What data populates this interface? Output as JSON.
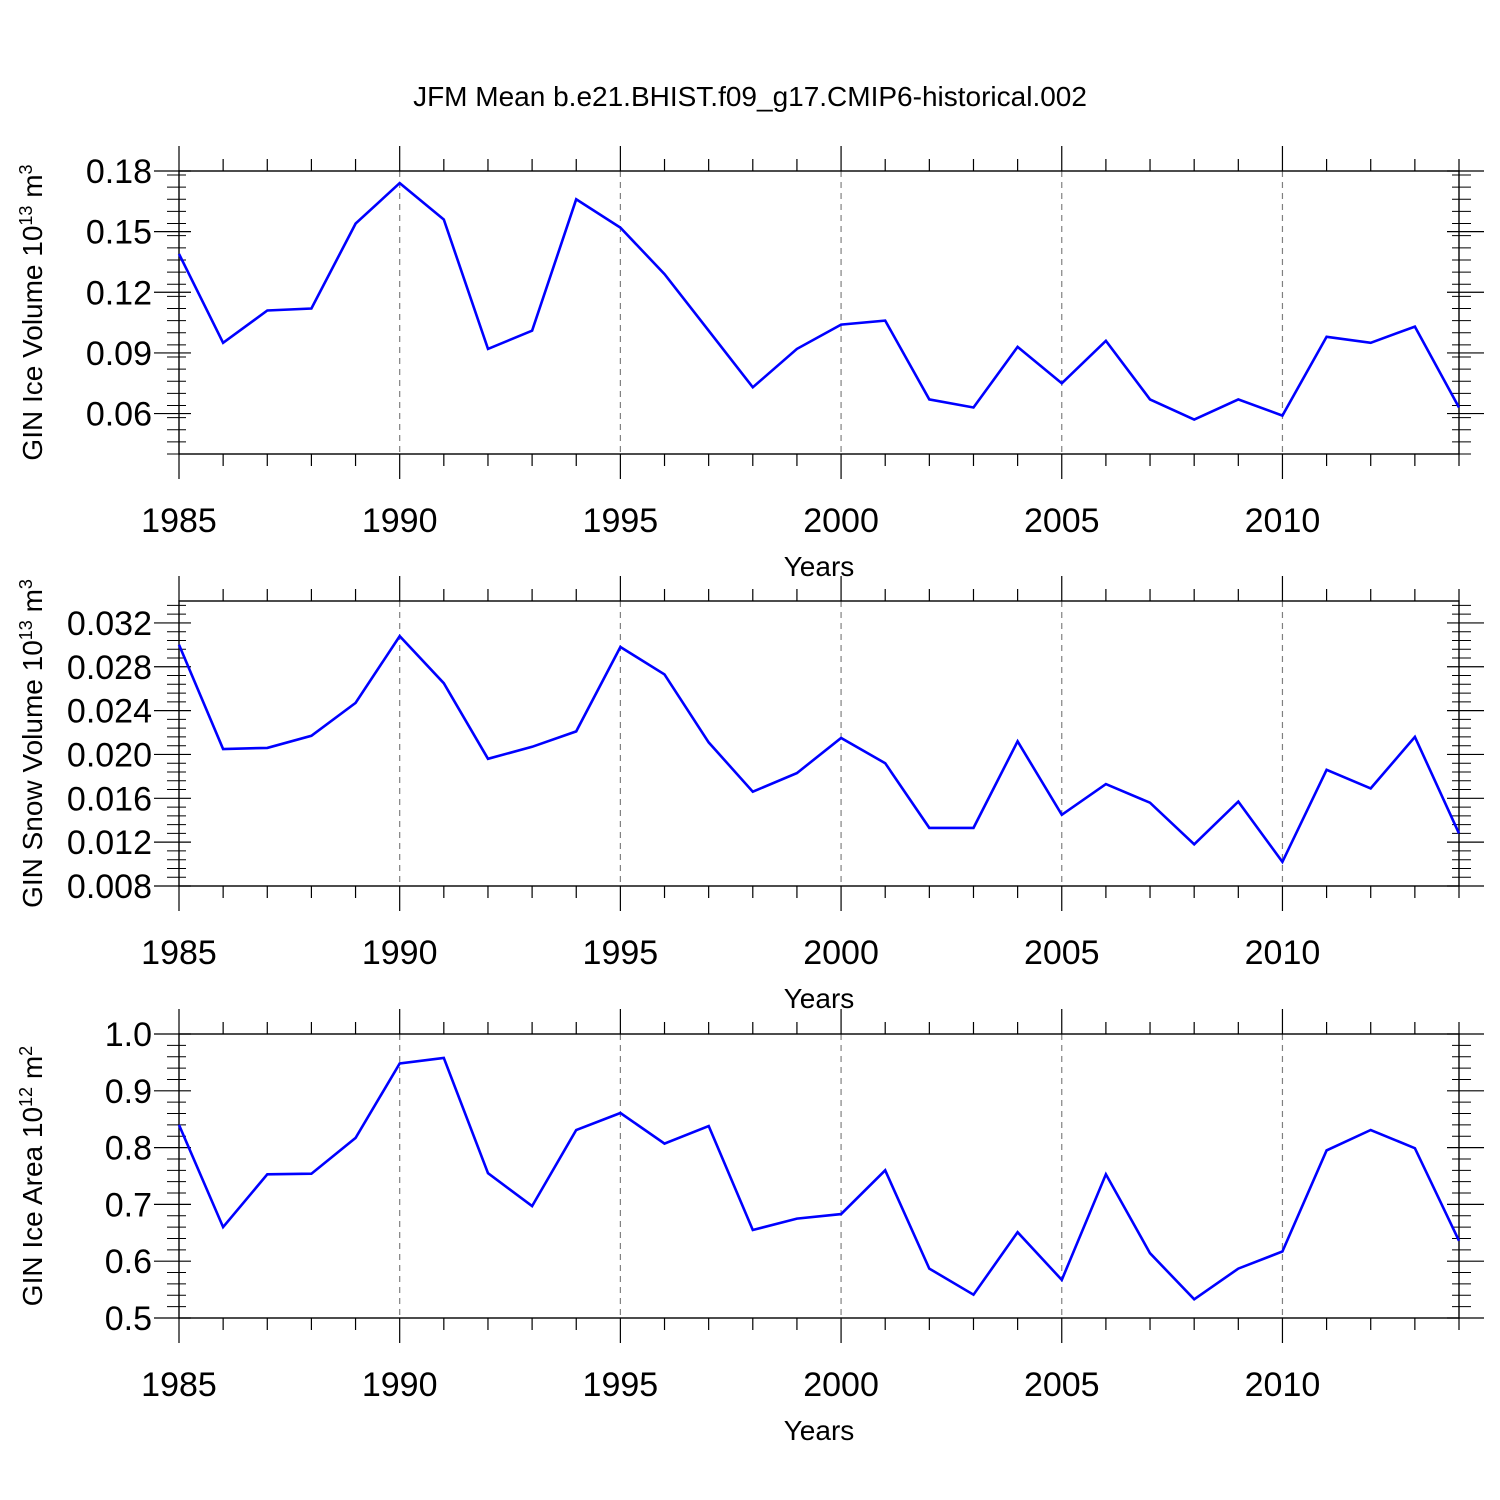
{
  "figure": {
    "title": "JFM Mean b.e21.BHIST.f09_g17.CMIP6-historical.002"
  },
  "colors": {
    "line": "#0000ff",
    "axes": "#000000",
    "grid": "#808080",
    "background": "#ffffff"
  },
  "chart_data": [
    {
      "type": "line",
      "xlabel": "Years",
      "ylabel": "GIN Ice Volume 10",
      "ylabel_exponent": "13",
      "ylabel_unit": "m",
      "ylabel_unit_exponent": "3",
      "xlim": [
        1985,
        2014
      ],
      "ylim": [
        0.04,
        0.18
      ],
      "xticks": [
        1985,
        1990,
        1995,
        2000,
        2005,
        2010
      ],
      "xtick_labels": [
        "1985",
        "1990",
        "1995",
        "2000",
        "2005",
        "2010"
      ],
      "yticks": [
        0.06,
        0.09,
        0.12,
        0.15,
        0.18
      ],
      "ytick_labels": [
        "0.06",
        "0.09",
        "0.12",
        "0.15",
        "0.18"
      ],
      "vertical_dashed_grid": [
        1990,
        1995,
        2000,
        2005,
        2010
      ],
      "x": [
        1985,
        1986,
        1987,
        1988,
        1989,
        1990,
        1991,
        1992,
        1993,
        1994,
        1995,
        1996,
        1997,
        1998,
        1999,
        2000,
        2001,
        2002,
        2003,
        2004,
        2005,
        2006,
        2007,
        2008,
        2009,
        2010,
        2011,
        2012,
        2013,
        2014
      ],
      "series": [
        {
          "values": [
            0.139,
            0.095,
            0.111,
            0.112,
            0.154,
            0.174,
            0.156,
            0.092,
            0.101,
            0.166,
            0.152,
            0.129,
            0.101,
            0.073,
            0.092,
            0.104,
            0.106,
            0.067,
            0.063,
            0.093,
            0.075,
            0.096,
            0.067,
            0.057,
            0.067,
            0.059,
            0.098,
            0.095,
            0.103,
            0.063
          ]
        }
      ]
    },
    {
      "type": "line",
      "xlabel": "Years",
      "ylabel": "GIN Snow Volume 10",
      "ylabel_exponent": "13",
      "ylabel_unit": "m",
      "ylabel_unit_exponent": "3",
      "xlim": [
        1985,
        2014
      ],
      "ylim": [
        0.008,
        0.034
      ],
      "xticks": [
        1985,
        1990,
        1995,
        2000,
        2005,
        2010
      ],
      "xtick_labels": [
        "1985",
        "1990",
        "1995",
        "2000",
        "2005",
        "2010"
      ],
      "yticks": [
        0.008,
        0.012,
        0.016,
        0.02,
        0.024,
        0.028,
        0.032
      ],
      "ytick_labels": [
        "0.008",
        "0.012",
        "0.016",
        "0.020",
        "0.024",
        "0.028",
        "0.032"
      ],
      "vertical_dashed_grid": [
        1990,
        1995,
        2000,
        2005,
        2010
      ],
      "x": [
        1985,
        1986,
        1987,
        1988,
        1989,
        1990,
        1991,
        1992,
        1993,
        1994,
        1995,
        1996,
        1997,
        1998,
        1999,
        2000,
        2001,
        2002,
        2003,
        2004,
        2005,
        2006,
        2007,
        2008,
        2009,
        2010,
        2011,
        2012,
        2013,
        2014
      ],
      "series": [
        {
          "values": [
            0.03,
            0.0205,
            0.0206,
            0.0217,
            0.0247,
            0.0308,
            0.0265,
            0.0196,
            0.0207,
            0.0221,
            0.0298,
            0.0273,
            0.0211,
            0.0166,
            0.0183,
            0.0215,
            0.0192,
            0.0133,
            0.0133,
            0.0212,
            0.0145,
            0.0173,
            0.0156,
            0.0118,
            0.0157,
            0.0102,
            0.0186,
            0.0169,
            0.0216,
            0.0128
          ]
        }
      ]
    },
    {
      "type": "line",
      "xlabel": "Years",
      "ylabel": "GIN Ice Area 10",
      "ylabel_exponent": "12",
      "ylabel_unit": "m",
      "ylabel_unit_exponent": "2",
      "xlim": [
        1985,
        2014
      ],
      "ylim": [
        0.5,
        1.0
      ],
      "xticks": [
        1985,
        1990,
        1995,
        2000,
        2005,
        2010
      ],
      "xtick_labels": [
        "1985",
        "1990",
        "1995",
        "2000",
        "2005",
        "2010"
      ],
      "yticks": [
        0.5,
        0.6,
        0.7,
        0.8,
        0.9,
        1.0
      ],
      "ytick_labels": [
        "0.5",
        "0.6",
        "0.7",
        "0.8",
        "0.9",
        "1.0"
      ],
      "vertical_dashed_grid": [
        1990,
        1995,
        2000,
        2005,
        2010
      ],
      "x": [
        1985,
        1986,
        1987,
        1988,
        1989,
        1990,
        1991,
        1992,
        1993,
        1994,
        1995,
        1996,
        1997,
        1998,
        1999,
        2000,
        2001,
        2002,
        2003,
        2004,
        2005,
        2006,
        2007,
        2008,
        2009,
        2010,
        2011,
        2012,
        2013,
        2014
      ],
      "series": [
        {
          "values": [
            0.84,
            0.66,
            0.753,
            0.754,
            0.817,
            0.948,
            0.958,
            0.755,
            0.697,
            0.831,
            0.861,
            0.807,
            0.838,
            0.655,
            0.675,
            0.683,
            0.76,
            0.587,
            0.541,
            0.651,
            0.567,
            0.753,
            0.614,
            0.533,
            0.587,
            0.617,
            0.795,
            0.831,
            0.799,
            0.636
          ]
        }
      ]
    }
  ]
}
